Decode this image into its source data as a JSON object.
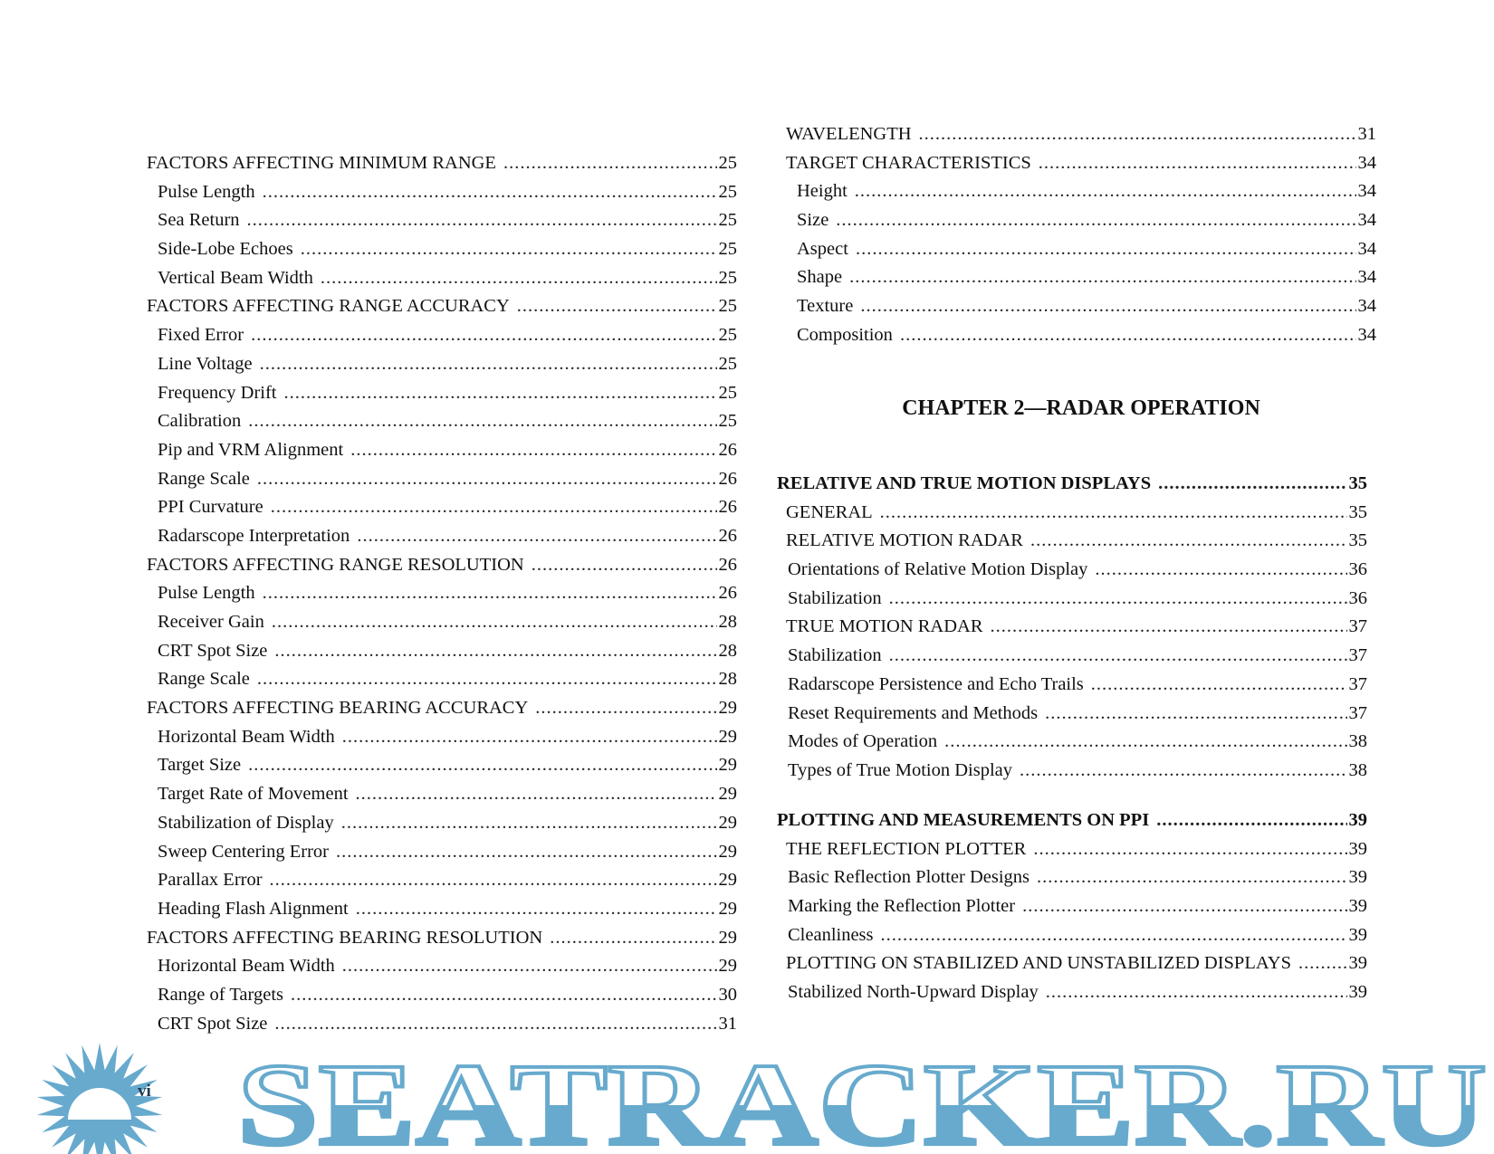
{
  "left_column": [
    {
      "title": "FACTORS AFFECTING MINIMUM RANGE",
      "page": "25",
      "level": 1
    },
    {
      "title": "Pulse Length",
      "page": "25",
      "level": 2
    },
    {
      "title": "Sea Return",
      "page": "25",
      "level": 2
    },
    {
      "title": "Side-Lobe Echoes",
      "page": "25",
      "level": 2
    },
    {
      "title": "Vertical Beam Width",
      "page": "25",
      "level": 2
    },
    {
      "title": "FACTORS AFFECTING RANGE ACCURACY",
      "page": "25",
      "level": 1
    },
    {
      "title": "Fixed Error",
      "page": "25",
      "level": 2
    },
    {
      "title": "Line Voltage",
      "page": "25",
      "level": 2
    },
    {
      "title": "Frequency Drift",
      "page": "25",
      "level": 2
    },
    {
      "title": "Calibration",
      "page": "25",
      "level": 2
    },
    {
      "title": "Pip and VRM Alignment",
      "page": "26",
      "level": 2
    },
    {
      "title": "Range Scale",
      "page": "26",
      "level": 2
    },
    {
      "title": "PPI Curvature",
      "page": "26",
      "level": 2
    },
    {
      "title": "Radarscope Interpretation",
      "page": "26",
      "level": 2
    },
    {
      "title": "FACTORS AFFECTING RANGE RESOLUTION",
      "page": "26",
      "level": 1
    },
    {
      "title": "Pulse Length",
      "page": "26",
      "level": 2
    },
    {
      "title": "Receiver Gain",
      "page": "28",
      "level": 2
    },
    {
      "title": "CRT Spot Size",
      "page": "28",
      "level": 2
    },
    {
      "title": "Range Scale",
      "page": "28",
      "level": 2
    },
    {
      "title": "FACTORS AFFECTING BEARING ACCURACY",
      "page": "29",
      "level": 1
    },
    {
      "title": "Horizontal Beam Width",
      "page": "29",
      "level": 2
    },
    {
      "title": "Target Size",
      "page": "29",
      "level": 2
    },
    {
      "title": "Target Rate of Movement",
      "page": "29",
      "level": 2
    },
    {
      "title": "Stabilization of Display",
      "page": "29",
      "level": 2
    },
    {
      "title": "Sweep Centering Error",
      "page": "29",
      "level": 2
    },
    {
      "title": "Parallax Error",
      "page": "29",
      "level": 2
    },
    {
      "title": "Heading Flash Alignment",
      "page": "29",
      "level": 2
    },
    {
      "title": "FACTORS AFFECTING BEARING RESOLUTION",
      "page": "29",
      "level": 1
    },
    {
      "title": "Horizontal Beam Width",
      "page": "29",
      "level": 2
    },
    {
      "title": "Range of Targets",
      "page": "30",
      "level": 2
    },
    {
      "title": "CRT Spot Size",
      "page": "31",
      "level": 2
    }
  ],
  "right_top": [
    {
      "title": "WAVELENGTH",
      "page": "31",
      "level": 1
    },
    {
      "title": "TARGET CHARACTERISTICS",
      "page": "34",
      "level": 1
    },
    {
      "title": "Height",
      "page": "34",
      "level": 2
    },
    {
      "title": "Size",
      "page": "34",
      "level": 2
    },
    {
      "title": "Aspect",
      "page": "34",
      "level": 2
    },
    {
      "title": "Shape",
      "page": "34",
      "level": 2
    },
    {
      "title": "Texture",
      "page": "34",
      "level": 2
    },
    {
      "title": "Composition",
      "page": "34",
      "level": 2
    }
  ],
  "chapter_heading": "CHAPTER 2—RADAR OPERATION",
  "right_mid": [
    {
      "title": "RELATIVE AND TRUE MOTION DISPLAYS",
      "page": "35",
      "level": 0
    },
    {
      "title": "GENERAL",
      "page": "35",
      "level": 1
    },
    {
      "title": "RELATIVE MOTION RADAR",
      "page": "35",
      "level": 1
    },
    {
      "title": "Orientations of Relative Motion Display",
      "page": "36",
      "level": 2
    },
    {
      "title": "Stabilization",
      "page": "36",
      "level": 2
    },
    {
      "title": "TRUE MOTION RADAR",
      "page": "37",
      "level": 1
    },
    {
      "title": "Stabilization",
      "page": "37",
      "level": 2
    },
    {
      "title": "Radarscope Persistence and Echo Trails",
      "page": "37",
      "level": 2
    },
    {
      "title": "Reset Requirements and Methods",
      "page": "37",
      "level": 2
    },
    {
      "title": "Modes of Operation",
      "page": "38",
      "level": 2
    },
    {
      "title": "Types of True Motion Display",
      "page": "38",
      "level": 2
    }
  ],
  "right_bottom": [
    {
      "title": "PLOTTING AND MEASUREMENTS ON PPI",
      "page": "39",
      "level": 0
    },
    {
      "title": "THE REFLECTION PLOTTER",
      "page": "39",
      "level": 1
    },
    {
      "title": "Basic Reflection Plotter Designs",
      "page": "39",
      "level": 2
    },
    {
      "title": "Marking the Reflection Plotter",
      "page": "39",
      "level": 2
    },
    {
      "title": "Cleanliness",
      "page": "39",
      "level": 2
    },
    {
      "title": "PLOTTING ON STABILIZED AND UNSTABILIZED DISPLAYS",
      "page": "39",
      "level": 1
    },
    {
      "title": "Stabilized North-Upward Display",
      "page": "39",
      "level": 2
    }
  ],
  "page_number": "vi",
  "watermark": {
    "text": "SEATRACKER.RU",
    "color": "#67aacd"
  }
}
